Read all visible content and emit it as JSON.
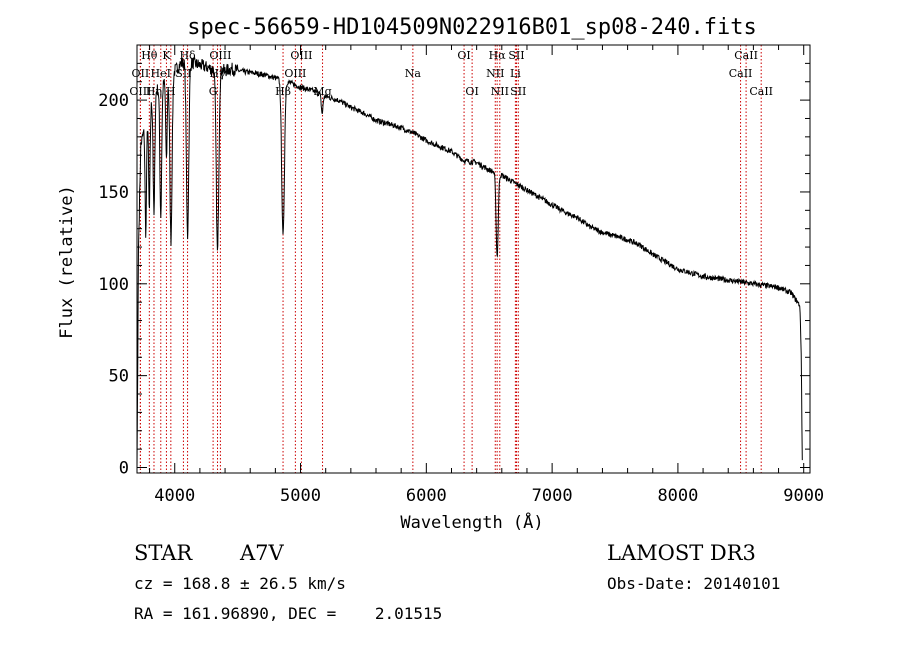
{
  "chart_data": {
    "type": "line",
    "title": "spec-56659-HD104509N022916B01_sp08-240.fits",
    "xlabel": "Wavelength (Å)",
    "ylabel": "Flux (relative)",
    "xlim": [
      3700,
      9050
    ],
    "ylim": [
      -3,
      230
    ],
    "xticks": [
      4000,
      5000,
      6000,
      7000,
      8000,
      9000
    ],
    "yticks": [
      0,
      50,
      100,
      150,
      200
    ],
    "continuum": [
      [
        3700,
        0
      ],
      [
        3712,
        120
      ],
      [
        3730,
        175
      ],
      [
        3760,
        185
      ],
      [
        3800,
        195
      ],
      [
        3850,
        205
      ],
      [
        3900,
        208
      ],
      [
        3950,
        212
      ],
      [
        4000,
        216
      ],
      [
        4050,
        220
      ],
      [
        4100,
        221
      ],
      [
        4150,
        220
      ],
      [
        4200,
        219
      ],
      [
        4250,
        218
      ],
      [
        4300,
        217
      ],
      [
        4350,
        217
      ],
      [
        4400,
        216
      ],
      [
        4450,
        217
      ],
      [
        4500,
        216
      ],
      [
        4600,
        215
      ],
      [
        4700,
        214
      ],
      [
        4800,
        212
      ],
      [
        4900,
        210
      ],
      [
        5000,
        207
      ],
      [
        5100,
        205
      ],
      [
        5200,
        202
      ],
      [
        5300,
        200
      ],
      [
        5400,
        196
      ],
      [
        5500,
        193
      ],
      [
        5600,
        189
      ],
      [
        5700,
        187
      ],
      [
        5800,
        185
      ],
      [
        5900,
        182
      ],
      [
        6000,
        178
      ],
      [
        6100,
        175
      ],
      [
        6200,
        172
      ],
      [
        6300,
        167
      ],
      [
        6400,
        166
      ],
      [
        6500,
        162
      ],
      [
        6600,
        159
      ],
      [
        6700,
        155
      ],
      [
        6800,
        151
      ],
      [
        6900,
        147
      ],
      [
        7000,
        143
      ],
      [
        7100,
        139
      ],
      [
        7200,
        136
      ],
      [
        7300,
        131
      ],
      [
        7400,
        128
      ],
      [
        7500,
        126
      ],
      [
        7600,
        124
      ],
      [
        7700,
        121
      ],
      [
        7800,
        116
      ],
      [
        7900,
        112
      ],
      [
        8000,
        108
      ],
      [
        8100,
        106
      ],
      [
        8200,
        104
      ],
      [
        8300,
        103
      ],
      [
        8400,
        102
      ],
      [
        8500,
        101
      ],
      [
        8600,
        100
      ],
      [
        8700,
        99
      ],
      [
        8800,
        98
      ],
      [
        8900,
        95
      ],
      [
        8950,
        90
      ],
      [
        8970,
        88
      ],
      [
        8980,
        62
      ],
      [
        8985,
        30
      ],
      [
        8988,
        8
      ],
      [
        8990,
        0
      ]
    ],
    "absorption": [
      {
        "center": 3770,
        "depth": 60,
        "width": 8
      },
      {
        "center": 3798,
        "depth": 55,
        "width": 8
      },
      {
        "center": 3835,
        "depth": 65,
        "width": 9
      },
      {
        "center": 3889,
        "depth": 70,
        "width": 10
      },
      {
        "center": 3934,
        "depth": 45,
        "width": 8
      },
      {
        "center": 3970,
        "depth": 90,
        "width": 12
      },
      {
        "center": 4102,
        "depth": 95,
        "width": 13
      },
      {
        "center": 4340,
        "depth": 100,
        "width": 14
      },
      {
        "center": 4861,
        "depth": 85,
        "width": 15
      },
      {
        "center": 5172,
        "depth": 10,
        "width": 10
      },
      {
        "center": 6563,
        "depth": 45,
        "width": 12
      }
    ],
    "spectral_lines": [
      {
        "label": "OII",
        "wavelength": 3727,
        "row": 1
      },
      {
        "label": "OIII",
        "wavelength": 3727,
        "row": 2
      },
      {
        "label": "Hθ",
        "wavelength": 3798,
        "row": 0
      },
      {
        "label": "Hη",
        "wavelength": 3835,
        "row": 2
      },
      {
        "label": "HeI",
        "wavelength": 3889,
        "row": 1
      },
      {
        "label": "K",
        "wavelength": 3934,
        "row": 0
      },
      {
        "label": "H",
        "wavelength": 3969,
        "row": 2
      },
      {
        "label": "SII",
        "wavelength": 4069,
        "row": 1
      },
      {
        "label": "Hδ",
        "wavelength": 4102,
        "row": 0
      },
      {
        "label": "Hγ",
        "wavelength": 4340,
        "row": 1
      },
      {
        "label": "G",
        "wavelength": 4305,
        "row": 2
      },
      {
        "label": "OIII",
        "wavelength": 4363,
        "row": 0
      },
      {
        "label": "Hβ",
        "wavelength": 4861,
        "row": 2
      },
      {
        "label": "OIII",
        "wavelength": 4959,
        "row": 1
      },
      {
        "label": "OIII",
        "wavelength": 5007,
        "row": 0
      },
      {
        "label": "Mg",
        "wavelength": 5175,
        "row": 2
      },
      {
        "label": "Na",
        "wavelength": 5893,
        "row": 1
      },
      {
        "label": "OI",
        "wavelength": 6300,
        "row": 0
      },
      {
        "label": "OI",
        "wavelength": 6364,
        "row": 2
      },
      {
        "label": "Hα",
        "wavelength": 6563,
        "row": 0
      },
      {
        "label": "NII",
        "wavelength": 6548,
        "row": 1
      },
      {
        "label": "NII",
        "wavelength": 6584,
        "row": 2
      },
      {
        "label": "SII",
        "wavelength": 6717,
        "row": 0
      },
      {
        "label": "Li",
        "wavelength": 6708,
        "row": 1
      },
      {
        "label": "SII",
        "wavelength": 6731,
        "row": 2
      },
      {
        "label": "CaII",
        "wavelength": 8498,
        "row": 1
      },
      {
        "label": "CaII",
        "wavelength": 8542,
        "row": 0
      },
      {
        "label": "CaII",
        "wavelength": 8662,
        "row": 2
      }
    ],
    "line_color": "#cc0000",
    "spectrum_color": "#000000"
  },
  "info": {
    "object_type": "STAR",
    "subclass": "A7V",
    "survey": "LAMOST DR3",
    "cz": "cz = 168.8 ± 26.5 km/s",
    "obs_date": "Obs-Date: 20140101",
    "radec": "RA = 161.96890, DEC =    2.01515"
  }
}
